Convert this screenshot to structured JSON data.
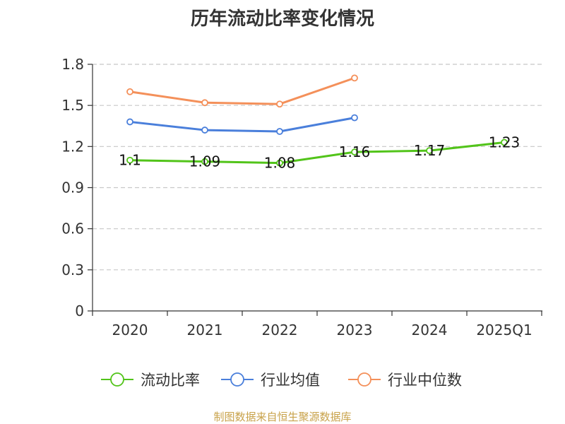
{
  "chart_data": {
    "type": "line",
    "title": "历年流动比率变化情况",
    "xlabel": "",
    "ylabel": "",
    "categories": [
      "2020",
      "2021",
      "2022",
      "2023",
      "2024",
      "2025Q1"
    ],
    "ylim": [
      0,
      1.8
    ],
    "yticks": [
      "0",
      "0.3",
      "0.6",
      "0.9",
      "1.2",
      "1.5",
      "1.8"
    ],
    "grid": true,
    "legend_position": "bottom",
    "series": [
      {
        "name": "流动比率",
        "color": "#52c41a",
        "values": [
          1.1,
          1.09,
          1.08,
          1.16,
          1.17,
          1.23
        ],
        "labels": [
          "1.1",
          "1.09",
          "1.08",
          "1.16",
          "1.17",
          "1.23"
        ]
      },
      {
        "name": "行业均值",
        "color": "#4a7fdb",
        "values": [
          1.38,
          1.32,
          1.31,
          1.41,
          null,
          null
        ]
      },
      {
        "name": "行业中位数",
        "color": "#f4905a",
        "values": [
          1.6,
          1.52,
          1.51,
          1.7,
          null,
          null
        ]
      }
    ]
  },
  "source": "制图数据来自恒生聚源数据库"
}
